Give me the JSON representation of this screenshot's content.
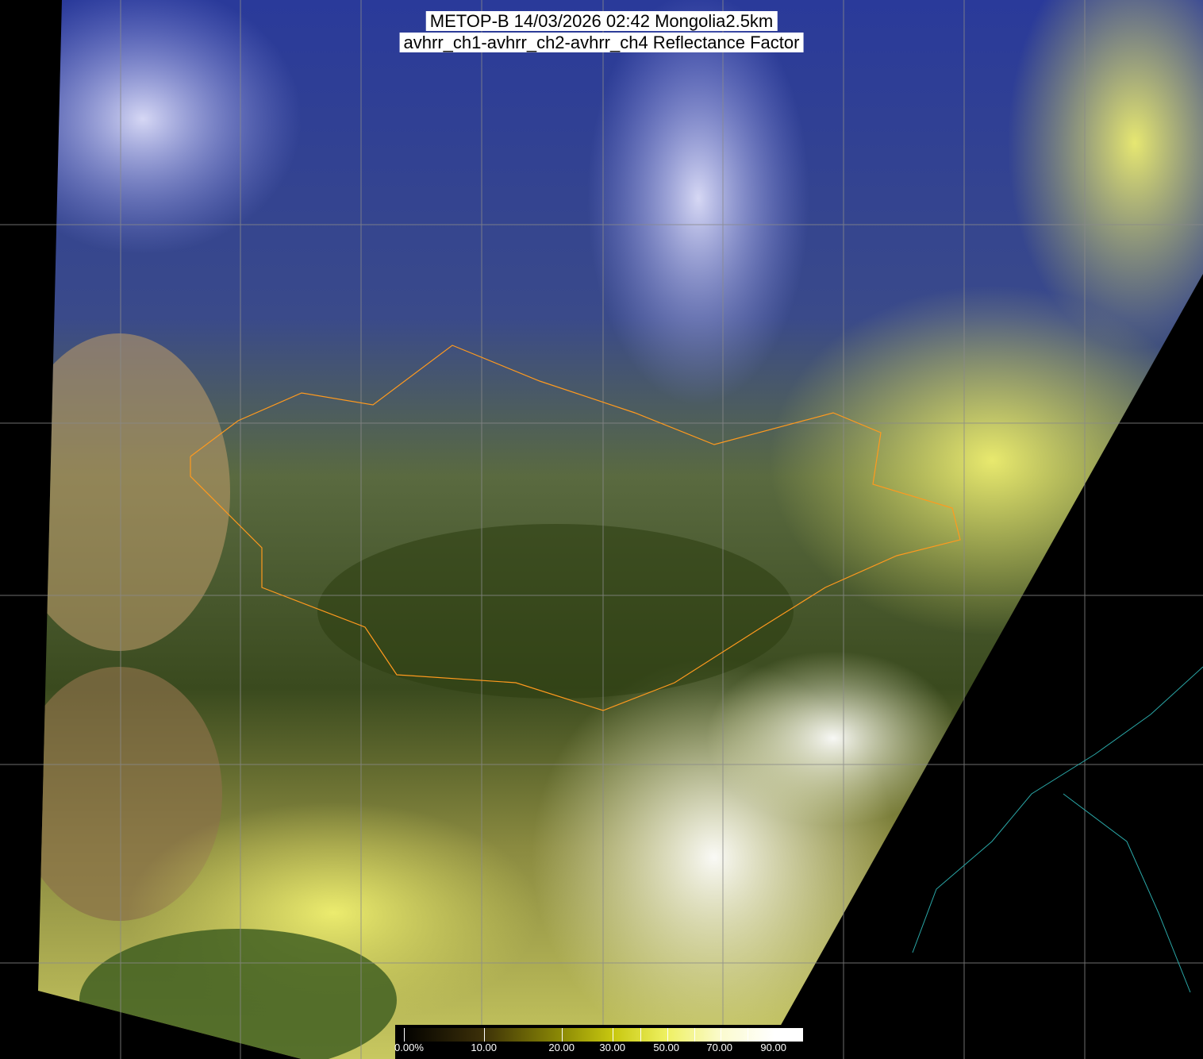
{
  "title": {
    "line1": "METOP-B 14/03/2026 02:42 Mongolia2.5km",
    "line2": "avhrr_ch1-avhrr_ch2-avhrr_ch4 Reflectance Factor"
  },
  "colorbar": {
    "labels": [
      "0.00%",
      "10.00",
      "20.00",
      "30.00",
      "50.00",
      "70.00",
      "90.00"
    ],
    "colors": [
      "#000000",
      "#3a2e08",
      "#8c8a05",
      "#c8c810",
      "#eef060",
      "#fbfbd0",
      "#ffffff"
    ]
  },
  "colors": {
    "grid": "#8a8a8a",
    "borders": "#ff9a1e",
    "coastline": "#2aa8a8",
    "cloud_blue": "#6b78e8",
    "clear_land": "#3a4a18",
    "snow_yellow": "#e8e860"
  }
}
